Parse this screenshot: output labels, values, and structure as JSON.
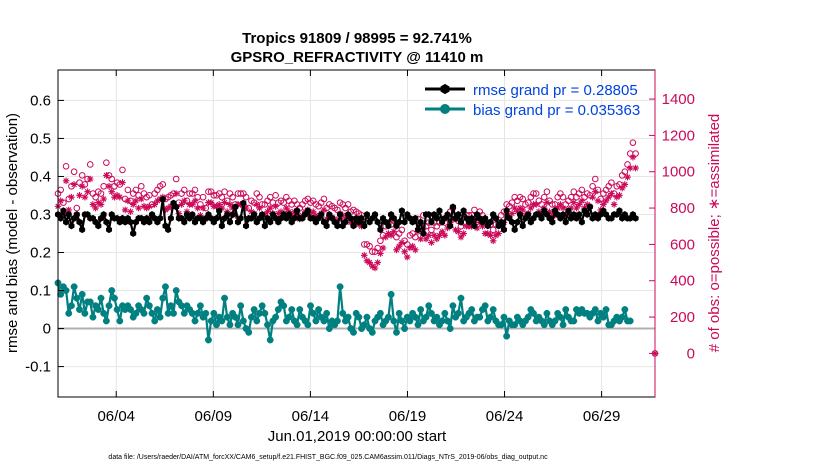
{
  "chart_data": {
    "type": "line",
    "title": "Tropics 91809 / 98995 = 92.741%",
    "subtitle": "GPSRO_REFRACTIVITY @ 11410 m",
    "xlabel": "Jun.01,2019 00:00:00 start",
    "ylabel": "rmse and bias (model - observation)",
    "y2label": "# of obs: o=possible; ∗=assimilated",
    "footnote": "data file: /Users/raeder/DAI/ATM_forcXX/CAM6_setup/f.e21.FHIST_BGC.f09_025.CAM6assim.011/Diags_NTrS_2019-06/obs_diag_output.nc",
    "xlim": [
      1,
      31.75
    ],
    "ylim": [
      -0.18,
      0.68
    ],
    "y2lim": [
      -240,
      1560
    ],
    "x_ticks": [
      4,
      9,
      14,
      19,
      24,
      29
    ],
    "x_tick_labels": [
      "06/04",
      "06/09",
      "06/14",
      "06/19",
      "06/24",
      "06/29"
    ],
    "y_ticks": [
      -0.1,
      0,
      0.1,
      0.2,
      0.3,
      0.4,
      0.5,
      0.6
    ],
    "y_tick_labels": [
      "-0.1",
      "0",
      "0.1",
      "0.2",
      "0.3",
      "0.4",
      "0.5",
      "0.6"
    ],
    "y2_ticks": [
      0,
      200,
      400,
      600,
      800,
      1000,
      1200,
      1400
    ],
    "y2_tick_labels": [
      "0",
      "200",
      "400",
      "600",
      "800",
      "1000",
      "1200",
      "1400"
    ],
    "legend_position": "top-right",
    "colors": {
      "rmse": "#000000",
      "bias": "#008080",
      "counts": "#cc0a5a",
      "legend_text": "#0044dd",
      "zero_line": "#b0b0b0"
    },
    "series": [
      {
        "name": "rmse grand pr = 0.28805",
        "key": "rmse",
        "values": [
          0.3,
          0.29,
          0.31,
          0.28,
          0.3,
          0.27,
          0.29,
          0.3,
          0.28,
          0.26,
          0.3,
          0.3,
          0.29,
          0.29,
          0.28,
          0.27,
          0.29,
          0.3,
          0.28,
          0.26,
          0.3,
          0.29,
          0.29,
          0.28,
          0.29,
          0.28,
          0.29,
          0.28,
          0.25,
          0.28,
          0.29,
          0.29,
          0.28,
          0.29,
          0.28,
          0.3,
          0.29,
          0.28,
          0.29,
          0.34,
          0.27,
          0.26,
          0.29,
          0.33,
          0.32,
          0.29,
          0.29,
          0.28,
          0.3,
          0.29,
          0.3,
          0.28,
          0.29,
          0.29,
          0.28,
          0.29,
          0.3,
          0.29,
          0.28,
          0.29,
          0.31,
          0.27,
          0.29,
          0.3,
          0.28,
          0.3,
          0.32,
          0.28,
          0.29,
          0.33,
          0.27,
          0.29,
          0.29,
          0.3,
          0.28,
          0.29,
          0.3,
          0.27,
          0.29,
          0.28,
          0.3,
          0.29,
          0.28,
          0.29,
          0.3,
          0.29,
          0.3,
          0.28,
          0.29,
          0.31,
          0.29,
          0.29,
          0.3,
          0.31,
          0.29,
          0.29,
          0.28,
          0.29,
          0.3,
          0.28,
          0.27,
          0.3,
          0.29,
          0.28,
          0.27,
          0.3,
          0.27,
          0.28,
          0.3,
          0.29,
          0.27,
          0.29,
          0.28,
          0.29,
          0.27,
          0.3,
          0.28,
          0.29,
          0.3,
          0.28,
          0.26,
          0.29,
          0.28,
          0.27,
          0.3,
          0.29,
          0.27,
          0.28,
          0.31,
          0.28,
          0.3,
          0.29,
          0.28,
          0.29,
          0.26,
          0.28,
          0.25,
          0.3,
          0.3,
          0.28,
          0.3,
          0.29,
          0.31,
          0.28,
          0.29,
          0.3,
          0.27,
          0.32,
          0.29,
          0.3,
          0.28,
          0.31,
          0.29,
          0.28,
          0.29,
          0.27,
          0.3,
          0.29,
          0.28,
          0.29,
          0.27,
          0.28,
          0.3,
          0.29,
          0.27,
          0.28,
          0.26,
          0.31,
          0.29,
          0.28,
          0.26,
          0.28,
          0.3,
          0.27,
          0.29,
          0.3,
          0.28,
          0.29,
          0.3,
          0.3,
          0.29,
          0.31,
          0.3,
          0.29,
          0.28,
          0.31,
          0.3,
          0.29,
          0.3,
          0.28,
          0.31,
          0.29,
          0.3,
          0.29,
          0.3,
          0.28,
          0.31,
          0.3,
          0.32,
          0.29,
          0.3,
          0.29,
          0.3,
          0.31,
          0.3,
          0.29,
          0.29,
          0.3,
          0.3,
          0.31,
          0.29,
          0.3,
          0.29,
          0.29,
          0.3,
          0.29
        ]
      },
      {
        "name": "bias grand pr = 0.035363",
        "key": "bias",
        "values": [
          0.12,
          0.09,
          0.11,
          0.1,
          0.04,
          0.06,
          0.11,
          0.08,
          0.05,
          0.09,
          0.04,
          0.07,
          0.07,
          0.03,
          0.06,
          0.05,
          0.08,
          0.04,
          0.02,
          0.06,
          0.1,
          0.08,
          0.05,
          0.02,
          0.06,
          0.05,
          0.06,
          0.05,
          0.03,
          0.04,
          0.06,
          0.05,
          0.04,
          0.08,
          0.06,
          0.04,
          0.02,
          0.05,
          0.03,
          0.08,
          0.11,
          0.04,
          0.06,
          0.04,
          0.1,
          0.07,
          0.06,
          0.04,
          0.06,
          0.05,
          0.04,
          0.02,
          0.04,
          0.06,
          0.03,
          0.04,
          -0.03,
          0.02,
          0.04,
          0.01,
          0.03,
          0.02,
          0.08,
          0.03,
          0.01,
          0.04,
          0.03,
          0.01,
          0.06,
          0.02,
          0.0,
          -0.01,
          0.03,
          0.05,
          0.02,
          0.04,
          0.06,
          0.04,
          0.01,
          -0.03,
          0.02,
          0.03,
          0.05,
          0.07,
          0.06,
          0.02,
          0.03,
          0.05,
          0.02,
          0.01,
          0.05,
          0.03,
          0.02,
          0.01,
          0.06,
          0.04,
          0.02,
          0.05,
          0.03,
          0.02,
          0.04,
          0.0,
          0.02,
          0.01,
          0.02,
          0.11,
          0.04,
          0.02,
          0.03,
          0.0,
          -0.01,
          0.04,
          0.03,
          0.0,
          0.01,
          0.03,
          0.0,
          -0.01,
          0.02,
          0.03,
          0.04,
          0.01,
          0.02,
          0.03,
          0.09,
          0.02,
          -0.01,
          0.04,
          0.02,
          0.0,
          0.03,
          0.02,
          0.04,
          0.03,
          0.01,
          0.05,
          0.02,
          0.03,
          0.06,
          0.04,
          0.02,
          0.03,
          0.01,
          0.02,
          0.04,
          0.02,
          0.0,
          0.06,
          0.03,
          0.04,
          0.08,
          0.02,
          0.03,
          0.04,
          0.05,
          0.02,
          0.03,
          0.03,
          0.05,
          0.06,
          0.02,
          0.03,
          0.05,
          0.02,
          0.01,
          0.01,
          0.03,
          -0.02,
          0.02,
          0.01,
          0.01,
          0.03,
          0.02,
          0.01,
          0.02,
          0.03,
          0.05,
          0.04,
          0.02,
          0.03,
          0.02,
          0.01,
          0.04,
          0.02,
          0.01,
          0.02,
          0.04,
          0.03,
          0.01,
          0.05,
          0.03,
          0.02,
          0.02,
          0.05,
          0.04,
          0.05,
          0.04,
          0.04,
          0.03,
          0.04,
          0.05,
          0.02,
          0.04,
          0.03,
          0.05,
          0.01,
          0.01,
          0.02,
          0.03,
          0.02,
          0.03,
          0.05,
          0.02,
          0.02
        ]
      },
      {
        "name": "possible",
        "key": "possible",
        "values": [
          880,
          900,
          830,
          1030,
          850,
          920,
          1000,
          800,
          940,
          980,
          930,
          960,
          1040,
          880,
          860,
          890,
          880,
          920,
          1050,
          980,
          960,
          920,
          940,
          930,
          1010,
          850,
          900,
          840,
          880,
          900,
          870,
          920,
          880,
          860,
          870,
          820,
          880,
          900,
          920,
          930,
          850,
          860,
          870,
          880,
          960,
          830,
          880,
          900,
          840,
          880,
          880,
          900,
          860,
          820,
          860,
          800,
          890,
          890,
          870,
          870,
          880,
          860,
          890,
          840,
          880,
          860,
          820,
          880,
          880,
          880,
          860,
          800,
          840,
          830,
          880,
          860,
          820,
          820,
          840,
          860,
          830,
          870,
          830,
          840,
          830,
          860,
          840,
          820,
          840,
          820,
          800,
          820,
          840,
          850,
          830,
          840,
          820,
          810,
          830,
          850,
          800,
          820,
          810,
          800,
          790,
          830,
          820,
          800,
          820,
          780,
          790,
          780,
          770,
          760,
          600,
          600,
          590,
          560,
          560,
          580,
          620,
          650,
          700,
          720,
          710,
          730,
          640,
          660,
          680,
          620,
          600,
          650,
          660,
          640,
          740,
          700,
          760,
          700,
          720,
          680,
          720,
          700,
          720,
          740,
          720,
          760,
          780,
          800,
          740,
          730,
          700,
          720,
          760,
          760,
          760,
          790,
          750,
          780,
          760,
          720,
          720,
          710,
          680,
          710,
          720,
          760,
          780,
          820,
          810,
          830,
          860,
          840,
          860,
          850,
          820,
          830,
          860,
          880,
          880,
          840,
          820,
          860,
          890,
          840,
          820,
          820,
          860,
          880,
          860,
          820,
          840,
          860,
          890,
          860,
          880,
          900,
          860,
          880,
          870,
          920,
          960,
          900,
          850,
          880,
          900,
          920,
          940,
          880,
          920,
          930,
          980,
          1000,
          1040,
          1100,
          1160,
          1100
        ]
      },
      {
        "name": "assimilated",
        "key": "assimilated",
        "values": [
          810,
          840,
          760,
          950,
          790,
          860,
          930,
          740,
          870,
          920,
          860,
          890,
          960,
          820,
          800,
          830,
          820,
          850,
          980,
          920,
          890,
          860,
          870,
          860,
          940,
          790,
          840,
          780,
          820,
          840,
          800,
          850,
          810,
          800,
          810,
          760,
          820,
          840,
          850,
          860,
          790,
          800,
          810,
          820,
          880,
          770,
          820,
          840,
          780,
          820,
          820,
          840,
          800,
          760,
          800,
          740,
          830,
          830,
          810,
          810,
          820,
          800,
          830,
          780,
          820,
          800,
          760,
          820,
          820,
          820,
          800,
          740,
          780,
          770,
          820,
          800,
          760,
          760,
          780,
          800,
          770,
          810,
          770,
          780,
          770,
          800,
          780,
          760,
          780,
          760,
          740,
          760,
          780,
          790,
          770,
          780,
          760,
          750,
          770,
          790,
          740,
          760,
          750,
          740,
          730,
          770,
          760,
          740,
          760,
          720,
          730,
          720,
          710,
          700,
          540,
          510,
          500,
          480,
          470,
          500,
          550,
          580,
          640,
          660,
          650,
          670,
          570,
          590,
          610,
          560,
          530,
          580,
          590,
          570,
          670,
          630,
          690,
          630,
          650,
          610,
          650,
          630,
          650,
          670,
          650,
          690,
          720,
          740,
          680,
          670,
          640,
          660,
          700,
          700,
          700,
          730,
          690,
          720,
          700,
          660,
          660,
          650,
          620,
          650,
          660,
          700,
          720,
          760,
          750,
          770,
          800,
          780,
          800,
          790,
          760,
          770,
          800,
          820,
          820,
          780,
          760,
          800,
          830,
          780,
          760,
          760,
          800,
          820,
          800,
          760,
          780,
          800,
          830,
          800,
          820,
          840,
          800,
          820,
          810,
          860,
          890,
          840,
          790,
          820,
          840,
          860,
          880,
          820,
          860,
          870,
          910,
          930,
          970,
          1020,
          1080,
          1020
        ]
      }
    ],
    "last_point": {
      "x": 31.75,
      "possible": 0,
      "assimilated": 0
    }
  }
}
